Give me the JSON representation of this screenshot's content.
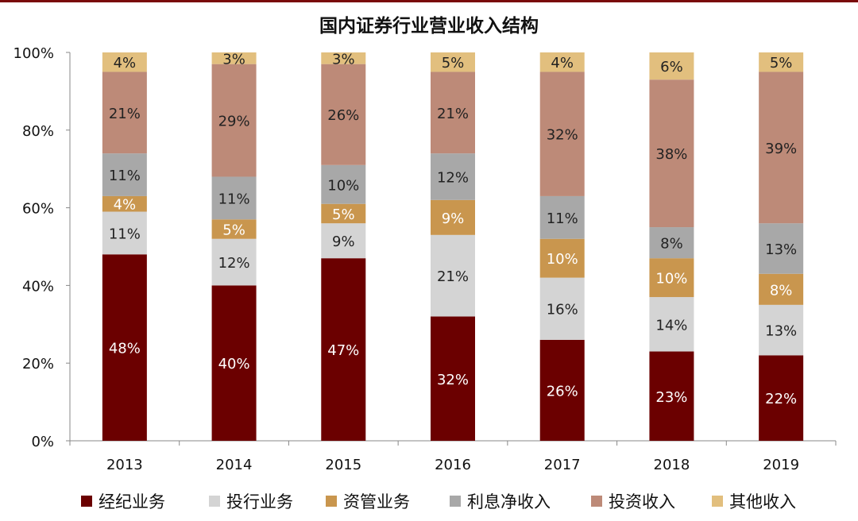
{
  "chart_data": {
    "type": "bar",
    "stacked": true,
    "title": "国内证券行业营业收入结构",
    "xlabel": "",
    "ylabel": "",
    "ylim": [
      0,
      100
    ],
    "yticks": [
      "0%",
      "20%",
      "40%",
      "60%",
      "80%",
      "100%"
    ],
    "categories": [
      "2013",
      "2014",
      "2015",
      "2016",
      "2017",
      "2018",
      "2019"
    ],
    "series": [
      {
        "name": "经纪业务",
        "color": "#6b0000",
        "label_color": "#ffffff",
        "values": [
          48,
          40,
          47,
          32,
          26,
          23,
          22
        ]
      },
      {
        "name": "投行业务",
        "color": "#d4d4d4",
        "label_color": "#222222",
        "values": [
          11,
          12,
          9,
          21,
          16,
          14,
          13
        ]
      },
      {
        "name": "资管业务",
        "color": "#c9964e",
        "label_color": "#ffffff",
        "values": [
          4,
          5,
          5,
          9,
          10,
          10,
          8
        ]
      },
      {
        "name": "利息净收入",
        "color": "#a8a8a8",
        "label_color": "#222222",
        "values": [
          11,
          11,
          10,
          12,
          11,
          8,
          13
        ]
      },
      {
        "name": "投资收入",
        "color": "#bd8a78",
        "label_color": "#222222",
        "values": [
          21,
          29,
          26,
          21,
          32,
          38,
          39
        ]
      },
      {
        "name": "其他收入",
        "color": "#e2bf7e",
        "label_color": "#222222",
        "values": [
          4,
          3,
          3,
          5,
          4,
          6,
          5
        ]
      }
    ],
    "legend_position": "bottom"
  }
}
